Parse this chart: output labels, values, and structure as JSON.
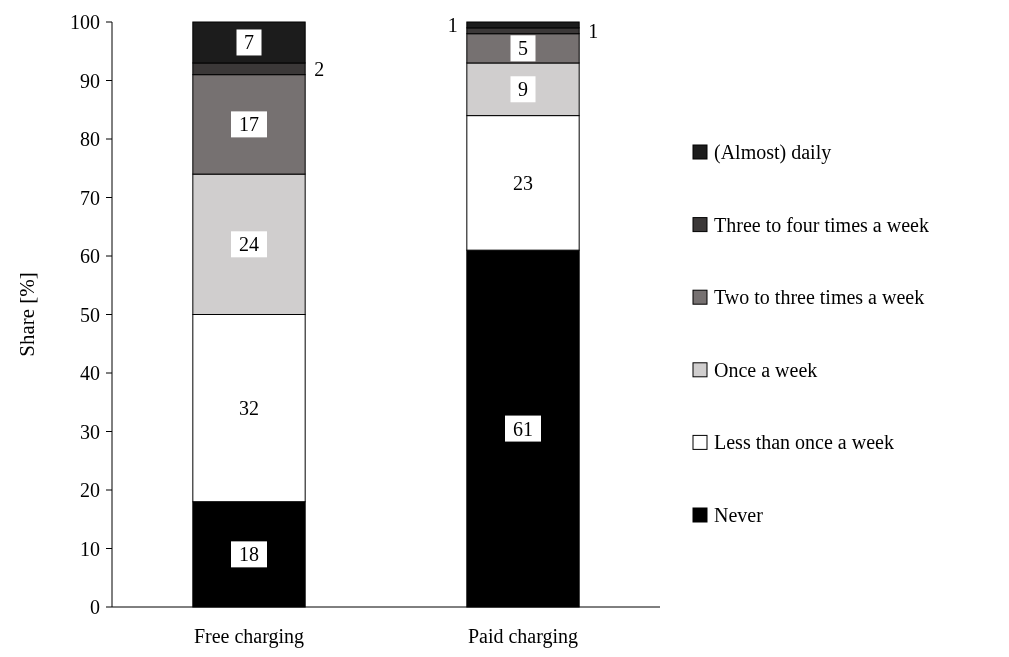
{
  "chart_data": {
    "type": "bar",
    "stacked": true,
    "ylabel": "Share [%]",
    "categories": [
      "Free charging",
      "Paid charging"
    ],
    "series": [
      {
        "name": "Never",
        "color": "#000000",
        "values": [
          18,
          61
        ]
      },
      {
        "name": "Less than once a week",
        "color": "#ffffff",
        "values": [
          32,
          23
        ]
      },
      {
        "name": "Once a week",
        "color": "#d0cece",
        "values": [
          24,
          9
        ]
      },
      {
        "name": "Two to three times a week",
        "color": "#767171",
        "values": [
          17,
          5
        ]
      },
      {
        "name": "Three to four times a week",
        "color": "#3b3838",
        "values": [
          2,
          1
        ]
      },
      {
        "name": "(Almost) daily",
        "color": "#1c1c1c",
        "values": [
          7,
          1
        ]
      }
    ],
    "ylim": [
      0,
      100
    ],
    "yticks": [
      0,
      10,
      20,
      30,
      40,
      50,
      60,
      70,
      80,
      90,
      100
    ],
    "data_labels": true,
    "legend": "right"
  }
}
